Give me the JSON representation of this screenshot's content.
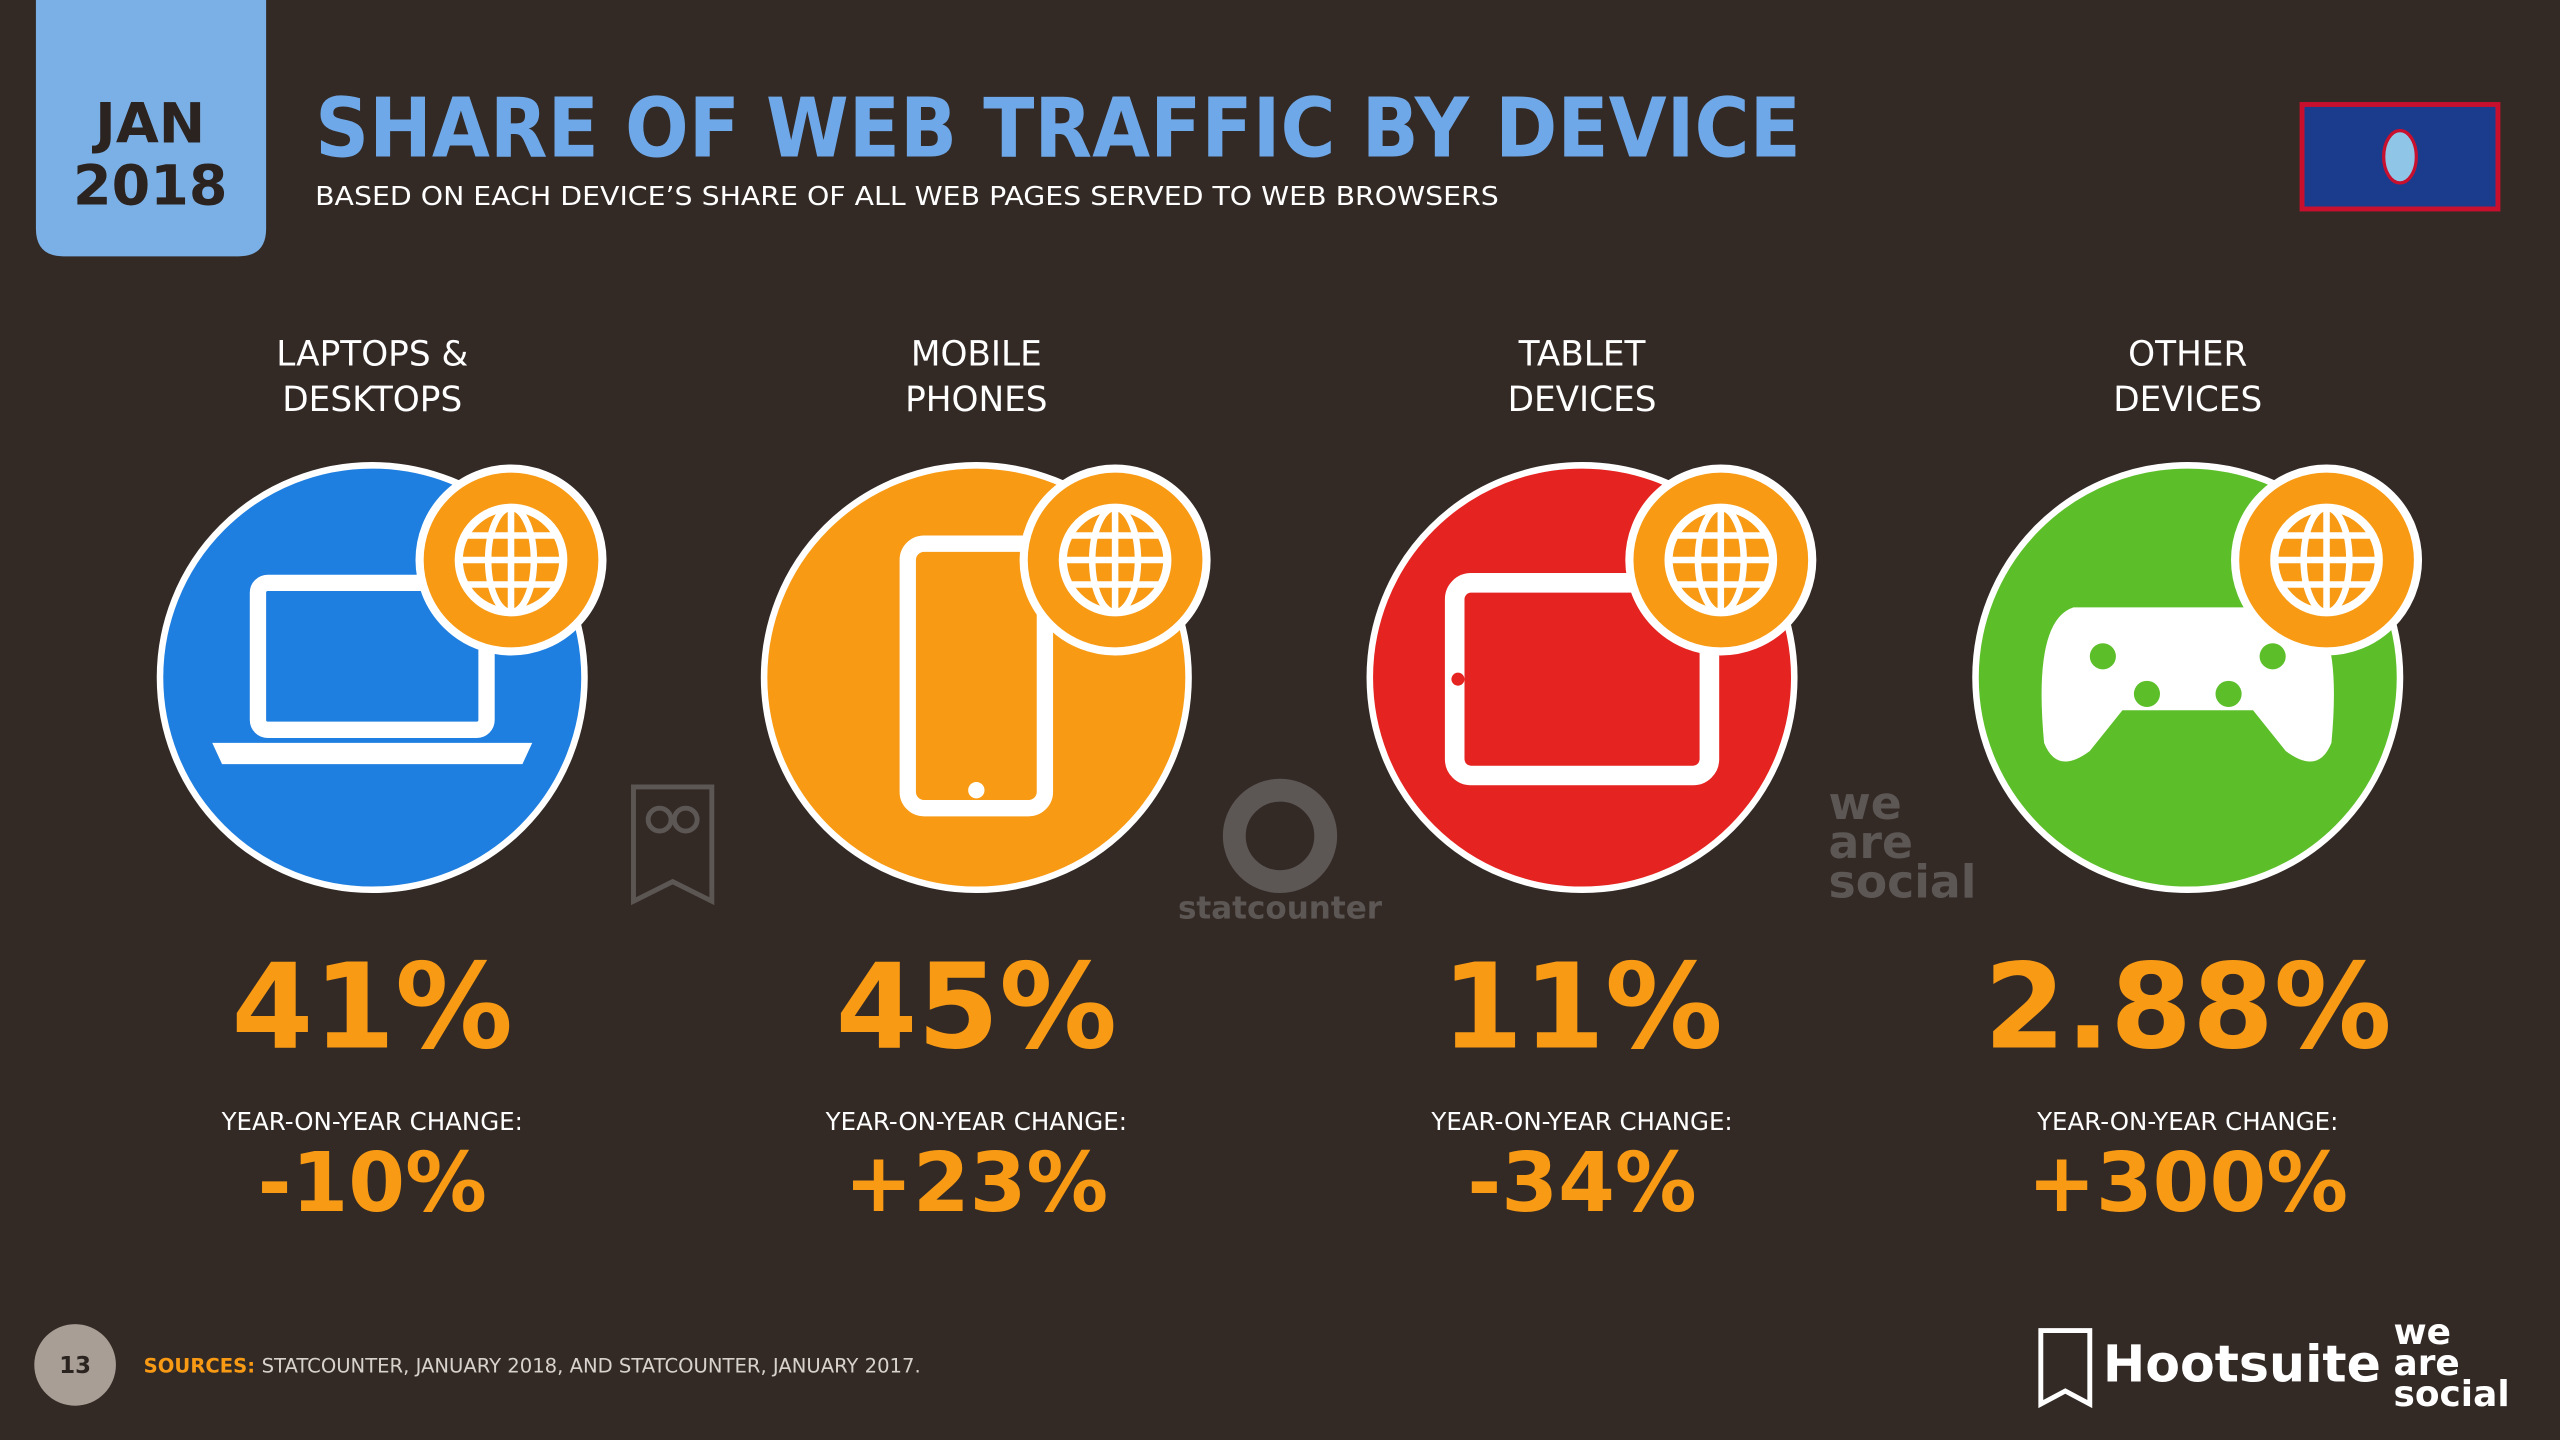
{
  "header": {
    "month": "JAN",
    "year": "2018",
    "title": "SHARE OF WEB TRAFFIC BY DEVICE",
    "subtitle": "BASED ON EACH DEVICE’S SHARE OF ALL WEB PAGES SERVED TO WEB BROWSERS"
  },
  "devices": [
    {
      "label": [
        "LAPTOPS &",
        "DESKTOPS"
      ],
      "share": "41%",
      "change_label": "YEAR-ON-YEAR CHANGE:",
      "change": "-10%"
    },
    {
      "label": [
        "MOBILE",
        "PHONES"
      ],
      "share": "45%",
      "change_label": "YEAR-ON-YEAR CHANGE:",
      "change": "+23%"
    },
    {
      "label": [
        "TABLET",
        "DEVICES"
      ],
      "share": "11%",
      "change_label": "YEAR-ON-YEAR CHANGE:",
      "change": "-34%"
    },
    {
      "label": [
        "OTHER",
        "DEVICES"
      ],
      "share": "2.88%",
      "change_label": "YEAR-ON-YEAR CHANGE:",
      "change": "+300%"
    }
  ],
  "watermarks": {
    "statcounter": "statcounter",
    "we_are_social": [
      "we",
      "are",
      "social"
    ]
  },
  "footer": {
    "page": "13",
    "sources_label": "SOURCES:",
    "sources": "STATCOUNTER, JANUARY 2018, AND STATCOUNTER, JANUARY 2017.",
    "brand": "Hootsuite",
    "brand2": [
      "we",
      "are",
      "social"
    ]
  }
}
